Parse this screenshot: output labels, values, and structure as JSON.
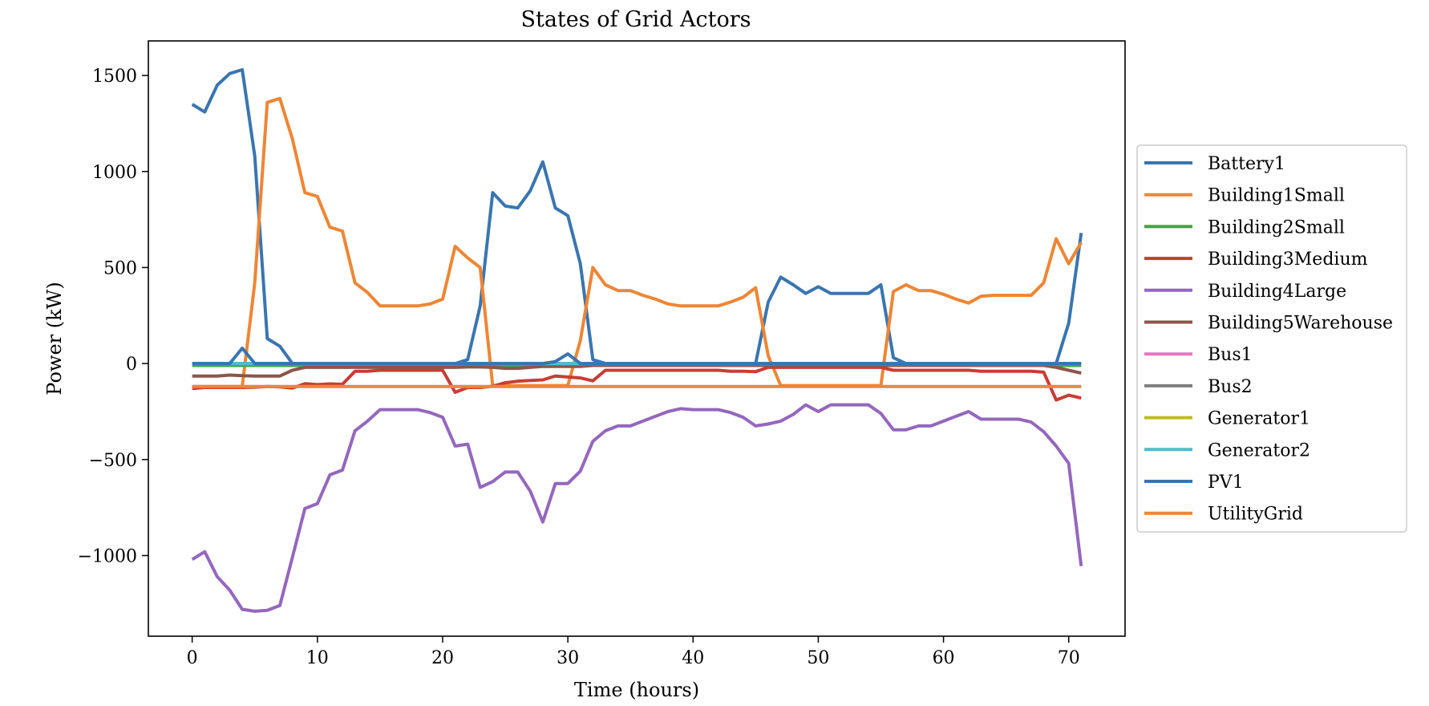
{
  "chart_data": {
    "type": "line",
    "title": "States of Grid Actors",
    "xlabel": "Time (hours)",
    "ylabel": "Power (kW)",
    "xlim": [
      -3.5,
      74.5
    ],
    "ylim": [
      -1420,
      1680
    ],
    "xticks": [
      0,
      10,
      20,
      30,
      40,
      50,
      60,
      70
    ],
    "yticks": [
      -1000,
      -500,
      0,
      500,
      1000,
      1500
    ],
    "ytick_labels": [
      "−1000",
      "−500",
      "0",
      "500",
      "1000",
      "1500"
    ],
    "grid": false,
    "legend_position": "center-right outside",
    "x": [
      0,
      1,
      2,
      3,
      4,
      5,
      6,
      7,
      8,
      9,
      10,
      11,
      12,
      13,
      14,
      15,
      16,
      17,
      18,
      19,
      20,
      21,
      22,
      23,
      24,
      25,
      26,
      27,
      28,
      29,
      30,
      31,
      32,
      33,
      34,
      35,
      36,
      37,
      38,
      39,
      40,
      41,
      42,
      43,
      44,
      45,
      46,
      47,
      48,
      49,
      50,
      51,
      52,
      53,
      54,
      55,
      56,
      57,
      58,
      59,
      60,
      61,
      62,
      63,
      64,
      65,
      66,
      67,
      68,
      69,
      70,
      71
    ],
    "series": [
      {
        "name": "Battery1",
        "color": "#3a75b0",
        "values": [
          1350,
          1310,
          1450,
          1510,
          1530,
          1080,
          130,
          90,
          0,
          0,
          0,
          0,
          0,
          0,
          0,
          0,
          0,
          0,
          0,
          0,
          0,
          0,
          20,
          300,
          890,
          820,
          810,
          900,
          1050,
          810,
          770,
          520,
          20,
          0,
          0,
          0,
          0,
          0,
          0,
          0,
          0,
          0,
          0,
          0,
          0,
          0,
          320,
          450,
          410,
          365,
          400,
          365,
          365,
          365,
          365,
          410,
          30,
          0,
          0,
          0,
          0,
          0,
          0,
          0,
          0,
          0,
          0,
          0,
          0,
          0,
          210,
          680
        ]
      },
      {
        "name": "Building1Small",
        "color": "#ee8635",
        "values": [
          -120,
          -120,
          -120,
          -120,
          -120,
          420,
          1360,
          1380,
          1170,
          890,
          870,
          710,
          690,
          420,
          370,
          300,
          300,
          300,
          300,
          310,
          335,
          610,
          550,
          500,
          -115,
          -115,
          -115,
          -115,
          -115,
          -115,
          -115,
          120,
          500,
          410,
          380,
          380,
          355,
          335,
          310,
          300,
          300,
          300,
          300,
          320,
          345,
          395,
          40,
          -115,
          -115,
          -115,
          -115,
          -115,
          -115,
          -115,
          -115,
          -115,
          375,
          410,
          380,
          380,
          360,
          335,
          315,
          350,
          355,
          355,
          355,
          355,
          420,
          650,
          520,
          630
        ]
      },
      {
        "name": "Building2Small",
        "color": "#4a9f46",
        "values": [
          -10,
          -10,
          -10,
          -10,
          -10,
          -10,
          -10,
          -10,
          -10,
          -10,
          -10,
          -10,
          -10,
          -10,
          -10,
          -10,
          -10,
          -10,
          -10,
          -10,
          -10,
          -10,
          -10,
          -10,
          -10,
          -10,
          -10,
          -10,
          -10,
          -10,
          -10,
          -10,
          -10,
          -10,
          -10,
          -10,
          -10,
          -10,
          -10,
          -10,
          -10,
          -10,
          -10,
          -10,
          -10,
          -10,
          -10,
          -10,
          -10,
          -10,
          -10,
          -10,
          -10,
          -10,
          -10,
          -10,
          -10,
          -10,
          -10,
          -10,
          -10,
          -10,
          -10,
          -10,
          -10,
          -10,
          -10,
          -10,
          -10,
          -10,
          -10,
          -10
        ]
      },
      {
        "name": "Building3Medium",
        "color": "#c83d34",
        "values": [
          -130,
          -125,
          -125,
          -125,
          -125,
          -123,
          -120,
          -122,
          -128,
          -105,
          -110,
          -106,
          -108,
          -40,
          -40,
          -35,
          -35,
          -35,
          -35,
          -35,
          -35,
          -150,
          -125,
          -125,
          -118,
          -100,
          -92,
          -88,
          -85,
          -65,
          -70,
          -75,
          -90,
          -35,
          -35,
          -35,
          -35,
          -35,
          -35,
          -35,
          -35,
          -35,
          -35,
          -40,
          -40,
          -42,
          -20,
          -20,
          -20,
          -20,
          -20,
          -20,
          -20,
          -20,
          -20,
          -20,
          -35,
          -35,
          -35,
          -35,
          -35,
          -35,
          -35,
          -40,
          -40,
          -40,
          -40,
          -40,
          -45,
          -190,
          -165,
          -180
        ]
      },
      {
        "name": "Building4Large",
        "color": "#9467bd",
        "values": [
          -1020,
          -980,
          -1110,
          -1180,
          -1280,
          -1290,
          -1285,
          -1260,
          -1010,
          -755,
          -730,
          -580,
          -555,
          -350,
          -300,
          -240,
          -240,
          -240,
          -240,
          -255,
          -280,
          -430,
          -420,
          -645,
          -615,
          -565,
          -565,
          -665,
          -825,
          -625,
          -625,
          -560,
          -405,
          -350,
          -325,
          -325,
          -300,
          -275,
          -250,
          -235,
          -240,
          -240,
          -240,
          -255,
          -280,
          -325,
          -315,
          -300,
          -265,
          -215,
          -250,
          -215,
          -215,
          -215,
          -215,
          -260,
          -345,
          -345,
          -325,
          -325,
          -300,
          -275,
          -250,
          -290,
          -290,
          -290,
          -290,
          -305,
          -355,
          -430,
          -520,
          -1055
        ]
      },
      {
        "name": "Building5Warehouse",
        "color": "#8c564b",
        "values": [
          -65,
          -65,
          -65,
          -60,
          -63,
          -65,
          -65,
          -65,
          -35,
          -20,
          -20,
          -20,
          -20,
          -20,
          -20,
          -20,
          -20,
          -20,
          -20,
          -20,
          -20,
          -20,
          -18,
          -18,
          -20,
          -25,
          -25,
          -20,
          -15,
          -15,
          -15,
          -15,
          -10,
          -10,
          -10,
          -10,
          -10,
          -10,
          -10,
          -10,
          -10,
          -10,
          -10,
          -10,
          -10,
          -10,
          -10,
          -10,
          -10,
          -10,
          -10,
          -10,
          -10,
          -10,
          -10,
          -10,
          -10,
          -10,
          -10,
          -10,
          -10,
          -10,
          -10,
          -10,
          -10,
          -10,
          -10,
          -10,
          -10,
          -20,
          -35,
          -50
        ]
      },
      {
        "name": "Bus1",
        "color": "#e377c2",
        "values": [
          0,
          0,
          0,
          0,
          0,
          0,
          0,
          0,
          0,
          0,
          0,
          0,
          0,
          0,
          0,
          0,
          0,
          0,
          0,
          0,
          0,
          0,
          0,
          0,
          0,
          0,
          0,
          0,
          0,
          0,
          0,
          0,
          0,
          0,
          0,
          0,
          0,
          0,
          0,
          0,
          0,
          0,
          0,
          0,
          0,
          0,
          0,
          0,
          0,
          0,
          0,
          0,
          0,
          0,
          0,
          0,
          0,
          0,
          0,
          0,
          0,
          0,
          0,
          0,
          0,
          0,
          0,
          0,
          0,
          0,
          0,
          0
        ]
      },
      {
        "name": "Bus2",
        "color": "#7f7f7f",
        "values": [
          0,
          0,
          0,
          0,
          0,
          0,
          0,
          0,
          0,
          0,
          0,
          0,
          0,
          0,
          0,
          0,
          0,
          0,
          0,
          0,
          0,
          0,
          0,
          0,
          0,
          0,
          0,
          0,
          0,
          0,
          0,
          0,
          0,
          0,
          0,
          0,
          0,
          0,
          0,
          0,
          0,
          0,
          0,
          0,
          0,
          0,
          0,
          0,
          0,
          0,
          0,
          0,
          0,
          0,
          0,
          0,
          0,
          0,
          0,
          0,
          0,
          0,
          0,
          0,
          0,
          0,
          0,
          0,
          0,
          0,
          0,
          0
        ]
      },
      {
        "name": "Generator1",
        "color": "#bcbd22",
        "values": [
          0,
          0,
          0,
          0,
          0,
          0,
          0,
          0,
          0,
          0,
          0,
          0,
          0,
          0,
          0,
          0,
          0,
          0,
          0,
          0,
          0,
          0,
          0,
          0,
          0,
          0,
          0,
          0,
          0,
          0,
          0,
          0,
          0,
          0,
          0,
          0,
          0,
          0,
          0,
          0,
          0,
          0,
          0,
          0,
          0,
          0,
          0,
          0,
          0,
          0,
          0,
          0,
          0,
          0,
          0,
          0,
          0,
          0,
          0,
          0,
          0,
          0,
          0,
          0,
          0,
          0,
          0,
          0,
          0,
          0,
          0,
          0
        ]
      },
      {
        "name": "Generator2",
        "color": "#4fbccb",
        "values": [
          0,
          0,
          0,
          0,
          0,
          0,
          0,
          0,
          0,
          0,
          0,
          0,
          0,
          0,
          0,
          0,
          0,
          0,
          0,
          0,
          0,
          0,
          0,
          0,
          0,
          0,
          0,
          0,
          0,
          0,
          0,
          0,
          0,
          0,
          0,
          0,
          0,
          0,
          0,
          0,
          0,
          0,
          0,
          0,
          0,
          0,
          0,
          0,
          0,
          0,
          0,
          0,
          0,
          0,
          0,
          0,
          0,
          0,
          0,
          0,
          0,
          0,
          0,
          0,
          0,
          0,
          0,
          0,
          0,
          0,
          0,
          0
        ]
      },
      {
        "name": "PV1",
        "color": "#3a75b0",
        "values": [
          0,
          0,
          0,
          0,
          80,
          0,
          0,
          0,
          0,
          0,
          0,
          0,
          0,
          0,
          0,
          0,
          0,
          0,
          0,
          0,
          0,
          0,
          0,
          0,
          0,
          0,
          0,
          0,
          0,
          10,
          50,
          0,
          0,
          0,
          0,
          0,
          0,
          0,
          0,
          0,
          0,
          0,
          0,
          0,
          0,
          0,
          0,
          0,
          0,
          0,
          0,
          0,
          0,
          0,
          0,
          0,
          0,
          0,
          0,
          0,
          0,
          0,
          0,
          0,
          0,
          0,
          0,
          0,
          0,
          0,
          0,
          0
        ]
      },
      {
        "name": "UtilityGrid",
        "color": "#ee8635",
        "values": [
          -120,
          -120,
          -120,
          -120,
          -120,
          -120,
          -120,
          -120,
          -120,
          -120,
          -120,
          -120,
          -120,
          -120,
          -120,
          -120,
          -120,
          -120,
          -120,
          -120,
          -120,
          -120,
          -120,
          -120,
          -120,
          -120,
          -120,
          -120,
          -120,
          -120,
          -120,
          -120,
          -120,
          -120,
          -120,
          -120,
          -120,
          -120,
          -120,
          -120,
          -120,
          -120,
          -120,
          -120,
          -120,
          -120,
          -120,
          -120,
          -120,
          -120,
          -120,
          -120,
          -120,
          -120,
          -120,
          -120,
          -120,
          -120,
          -120,
          -120,
          -120,
          -120,
          -120,
          -120,
          -120,
          -120,
          -120,
          -120,
          -120,
          -120,
          -120,
          -120
        ]
      }
    ]
  }
}
